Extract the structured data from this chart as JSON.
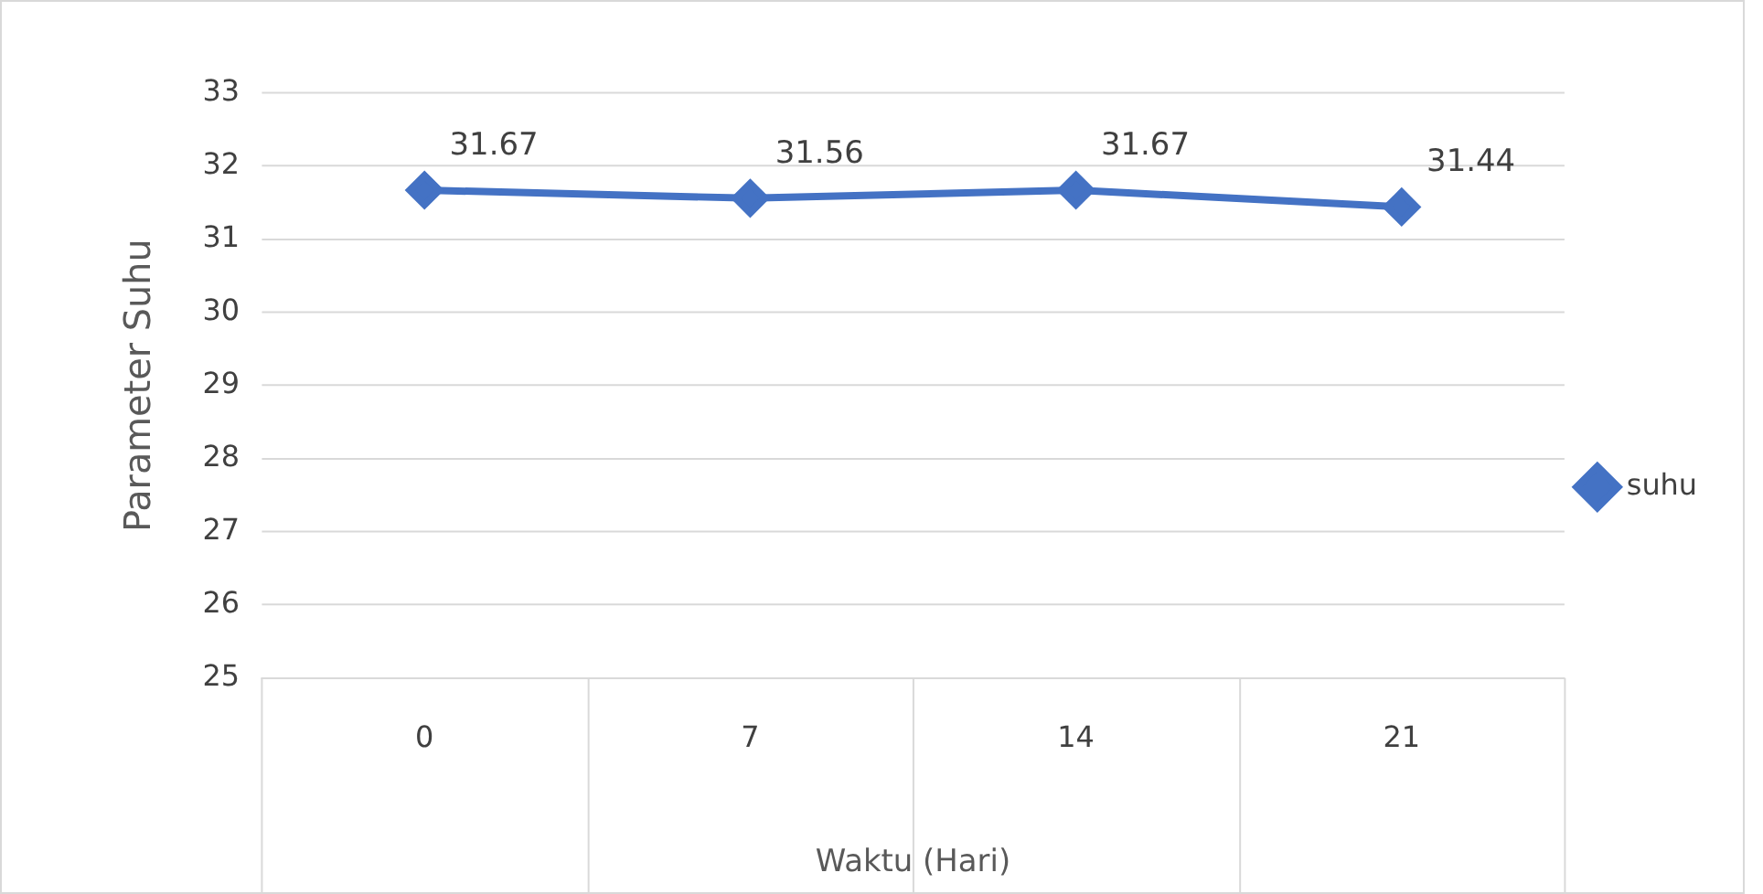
{
  "chart_data": {
    "type": "line",
    "xlabel": "Waktu (Hari)",
    "ylabel": "Parameter Suhu",
    "categories": [
      "0",
      "7",
      "14",
      "21"
    ],
    "series": [
      {
        "name": "suhu",
        "color": "#4472c4",
        "values": [
          31.67,
          31.56,
          31.67,
          31.44
        ]
      }
    ],
    "ylim": [
      25,
      33
    ],
    "yticks": [
      25,
      26,
      27,
      28,
      29,
      30,
      31,
      32,
      33
    ],
    "grid": "y",
    "legend": "right",
    "marker": "diamond",
    "line_style": "solid",
    "data_labels": true
  }
}
